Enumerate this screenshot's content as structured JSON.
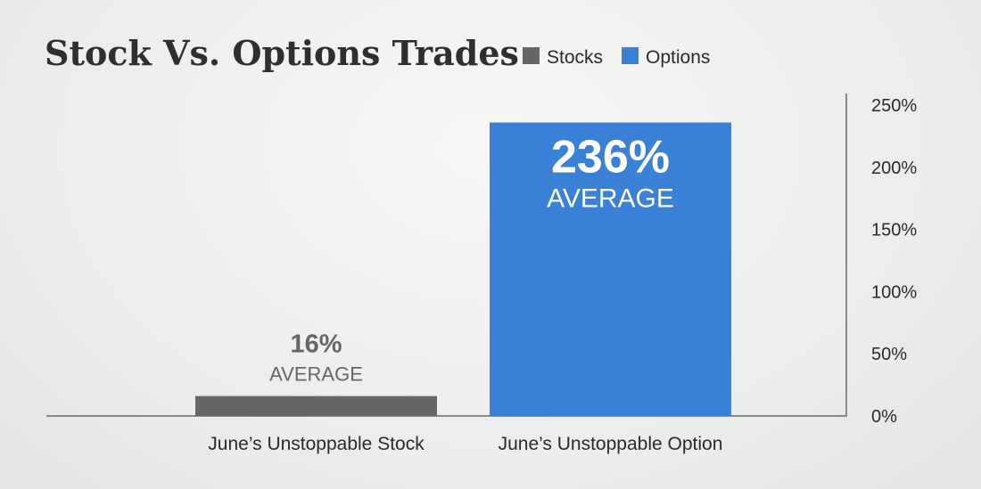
{
  "chart_data": {
    "type": "bar",
    "title": "Stock Vs. Options Trades",
    "legend_position": "top",
    "series": [
      {
        "name": "Stocks",
        "color": "#666666"
      },
      {
        "name": "Options",
        "color": "#3a80d6"
      }
    ],
    "categories": [
      "June’s Unstoppable Stock",
      "June’s Unstoppable Option"
    ],
    "values": [
      16,
      236
    ],
    "value_labels": [
      "16%",
      "236%"
    ],
    "sub_labels": [
      "AVERAGE",
      "AVERAGE"
    ],
    "ylim": [
      0,
      250
    ],
    "y_ticks": [
      0,
      50,
      100,
      150,
      200,
      250
    ],
    "y_tick_labels": [
      "0%",
      "50%",
      "100%",
      "150%",
      "200%",
      "250%"
    ],
    "y_axis_position": "right",
    "grid": false
  }
}
